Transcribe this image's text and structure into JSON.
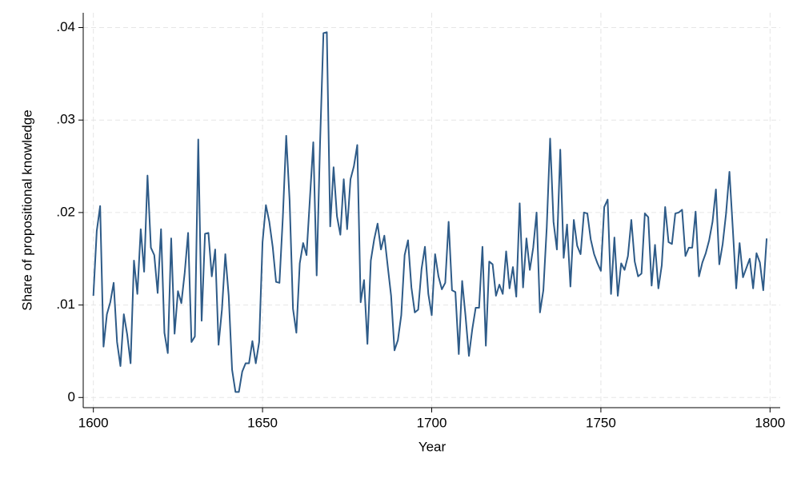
{
  "chart_data": {
    "type": "line",
    "x_label": "Year",
    "y_label": "Share of propositional knowledge",
    "x": [
      1600,
      1601,
      1602,
      1603,
      1604,
      1605,
      1606,
      1607,
      1608,
      1609,
      1610,
      1611,
      1612,
      1613,
      1614,
      1615,
      1616,
      1617,
      1618,
      1619,
      1620,
      1621,
      1622,
      1623,
      1624,
      1625,
      1626,
      1627,
      1628,
      1629,
      1630,
      1631,
      1632,
      1633,
      1634,
      1635,
      1636,
      1637,
      1638,
      1639,
      1640,
      1641,
      1642,
      1643,
      1644,
      1645,
      1646,
      1647,
      1648,
      1649,
      1650,
      1651,
      1652,
      1653,
      1654,
      1655,
      1656,
      1657,
      1658,
      1659,
      1660,
      1661,
      1662,
      1663,
      1664,
      1665,
      1666,
      1667,
      1668,
      1669,
      1670,
      1671,
      1672,
      1673,
      1674,
      1675,
      1676,
      1677,
      1678,
      1679,
      1680,
      1681,
      1682,
      1683,
      1684,
      1685,
      1686,
      1687,
      1688,
      1689,
      1690,
      1691,
      1692,
      1693,
      1694,
      1695,
      1696,
      1697,
      1698,
      1699,
      1700,
      1701,
      1702,
      1703,
      1704,
      1705,
      1706,
      1707,
      1708,
      1709,
      1710,
      1711,
      1712,
      1713,
      1714,
      1715,
      1716,
      1717,
      1718,
      1719,
      1720,
      1721,
      1722,
      1723,
      1724,
      1725,
      1726,
      1727,
      1728,
      1729,
      1730,
      1731,
      1732,
      1733,
      1734,
      1735,
      1736,
      1737,
      1738,
      1739,
      1740,
      1741,
      1742,
      1743,
      1744,
      1745,
      1746,
      1747,
      1748,
      1749,
      1750,
      1751,
      1752,
      1753,
      1754,
      1755,
      1756,
      1757,
      1758,
      1759,
      1760,
      1761,
      1762,
      1763,
      1764,
      1765,
      1766,
      1767,
      1768,
      1769,
      1770,
      1771,
      1772,
      1773,
      1774,
      1775,
      1776,
      1777,
      1778,
      1779,
      1780,
      1781,
      1782,
      1783,
      1784,
      1785,
      1786,
      1787,
      1788,
      1789,
      1790,
      1791,
      1792,
      1793,
      1794,
      1795,
      1796,
      1797,
      1798,
      1799
    ],
    "series": [
      {
        "color": "#2e5b88",
        "values": [
          0.011,
          0.018,
          0.0207,
          0.0055,
          0.009,
          0.0103,
          0.0124,
          0.006,
          0.0034,
          0.009,
          0.0068,
          0.0037,
          0.0148,
          0.0112,
          0.0182,
          0.0136,
          0.024,
          0.0162,
          0.0154,
          0.0113,
          0.0182,
          0.007,
          0.0048,
          0.0172,
          0.0069,
          0.0115,
          0.0102,
          0.0135,
          0.0178,
          0.006,
          0.0066,
          0.0279,
          0.0083,
          0.0177,
          0.0178,
          0.0131,
          0.016,
          0.0057,
          0.0095,
          0.0155,
          0.011,
          0.003,
          0.0006,
          0.0006,
          0.0028,
          0.0037,
          0.0037,
          0.0061,
          0.0037,
          0.006,
          0.0168,
          0.0208,
          0.019,
          0.0163,
          0.0125,
          0.0124,
          0.0195,
          0.0283,
          0.0213,
          0.0096,
          0.007,
          0.0145,
          0.0167,
          0.0154,
          0.0215,
          0.0276,
          0.0132,
          0.0275,
          0.0394,
          0.0395,
          0.0185,
          0.0249,
          0.0196,
          0.0176,
          0.0236,
          0.0182,
          0.0236,
          0.025,
          0.0273,
          0.0103,
          0.0127,
          0.0058,
          0.0148,
          0.0171,
          0.0188,
          0.016,
          0.0175,
          0.0142,
          0.011,
          0.0051,
          0.0062,
          0.0089,
          0.0154,
          0.017,
          0.0119,
          0.0092,
          0.0095,
          0.0139,
          0.0163,
          0.0112,
          0.0089,
          0.0155,
          0.0131,
          0.0117,
          0.0124,
          0.019,
          0.0116,
          0.0114,
          0.0047,
          0.0126,
          0.0088,
          0.0045,
          0.0074,
          0.0097,
          0.0097,
          0.0163,
          0.0056,
          0.0147,
          0.0144,
          0.011,
          0.0122,
          0.0112,
          0.0158,
          0.0118,
          0.0141,
          0.0109,
          0.021,
          0.0119,
          0.0172,
          0.0138,
          0.0162,
          0.02,
          0.0092,
          0.0116,
          0.0184,
          0.028,
          0.019,
          0.016,
          0.0268,
          0.0151,
          0.0187,
          0.012,
          0.0192,
          0.0164,
          0.0155,
          0.02,
          0.0199,
          0.0171,
          0.0155,
          0.0145,
          0.0137,
          0.0206,
          0.0214,
          0.0112,
          0.0173,
          0.011,
          0.0145,
          0.0138,
          0.0153,
          0.0192,
          0.0147,
          0.0131,
          0.0134,
          0.0199,
          0.0195,
          0.0121,
          0.0165,
          0.0118,
          0.0143,
          0.0206,
          0.0168,
          0.0166,
          0.0199,
          0.02,
          0.0203,
          0.0153,
          0.0162,
          0.0162,
          0.0201,
          0.0131,
          0.0146,
          0.0156,
          0.017,
          0.019,
          0.0225,
          0.0144,
          0.0166,
          0.0199,
          0.0244,
          0.0182,
          0.0118,
          0.0167,
          0.013,
          0.014,
          0.015,
          0.0118,
          0.0156,
          0.0146,
          0.0116,
          0.0172
        ]
      }
    ],
    "xlim": [
      1597,
      1803
    ],
    "ylim": [
      -0.0011,
      0.0416
    ],
    "xticks": [
      1600,
      1650,
      1700,
      1750,
      1800
    ],
    "yticks": [
      0,
      {
        "value": 0.01,
        "label": ".01"
      },
      {
        "value": 0.02,
        "label": ".02"
      },
      {
        "value": 0.03,
        "label": ".03"
      },
      {
        "value": 0.04,
        "label": ".04"
      }
    ],
    "grid": true
  }
}
